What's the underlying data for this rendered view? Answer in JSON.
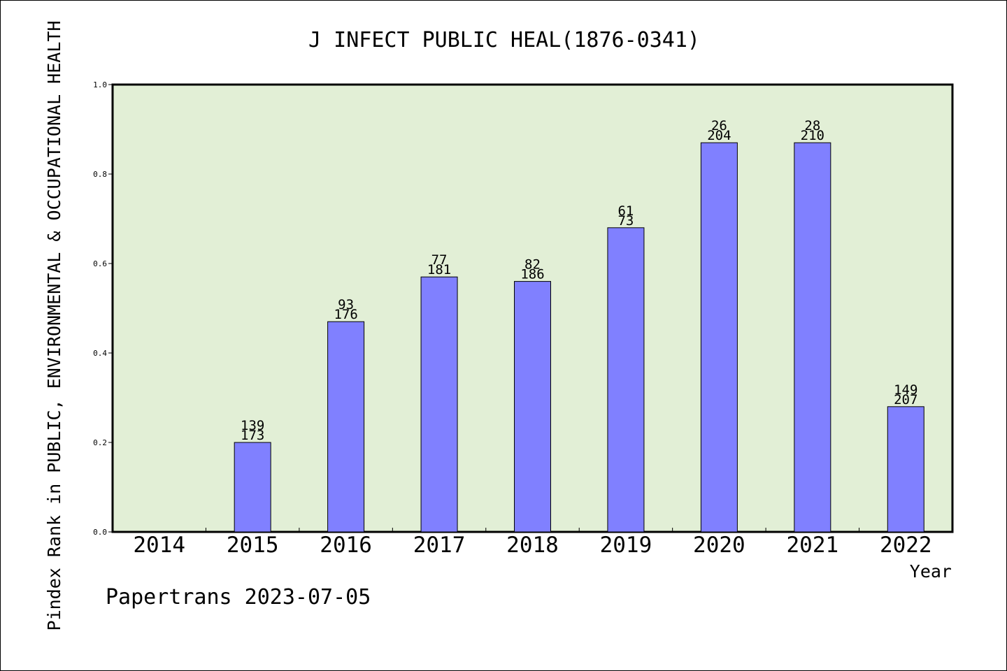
{
  "chart_data": {
    "type": "bar",
    "title": "J INFECT PUBLIC HEAL(1876-0341)",
    "xlabel": "Year",
    "ylabel": "Pindex Rank in PUBLIC, ENVIRONMENTAL & OCCUPATIONAL HEALTH",
    "ylim": [
      0.0,
      1.0
    ],
    "yticks": [
      "0.0",
      "0.2",
      "0.4",
      "0.6",
      "0.8",
      "1.0"
    ],
    "categories": [
      "2014",
      "2015",
      "2016",
      "2017",
      "2018",
      "2019",
      "2020",
      "2021",
      "2022"
    ],
    "values": [
      null,
      0.2,
      0.47,
      0.57,
      0.56,
      0.68,
      0.87,
      0.87,
      0.28
    ],
    "labels_top": [
      null,
      "139",
      "93",
      "77",
      "82",
      "61",
      "26",
      "28",
      "149"
    ],
    "labels_bottom": [
      null,
      "173",
      "176",
      "181",
      "186",
      "73",
      "204",
      "210",
      "207"
    ],
    "grid": false,
    "colors": {
      "bar_fill": "#8080ff",
      "bar_stroke": "#000000",
      "plot_background": "#e2efd6",
      "figure_background": "#ffffff"
    }
  },
  "footer": {
    "text": "Papertrans 2023-07-05"
  }
}
